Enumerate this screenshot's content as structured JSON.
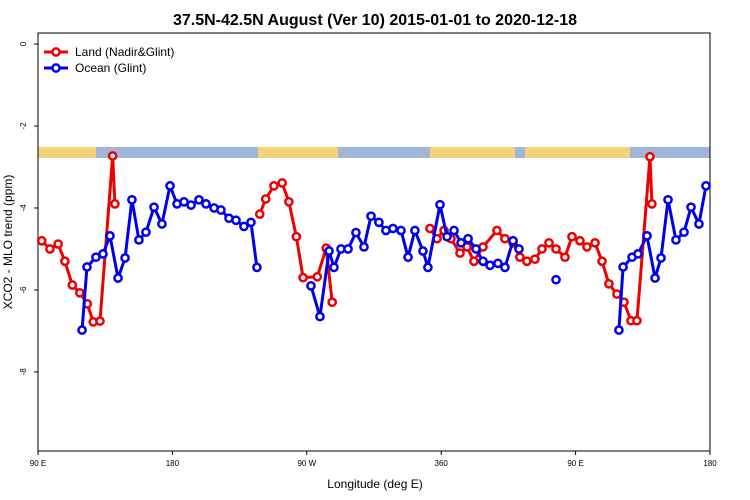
{
  "chart_data": {
    "type": "line",
    "title": "37.5N-42.5N August (Ver 10)   2015-01-01 to 2020-12-18",
    "x_label": "Longitude (deg E)",
    "y_label": "XCO2 - MLO trend (ppm)",
    "xlim": [
      90,
      540
    ],
    "ylim": [
      -9.93,
      0.27
    ],
    "xticks": [
      {
        "value": 90,
        "label": "90 E"
      },
      180,
      {
        "value": 270,
        "label": "90 W"
      },
      360,
      {
        "value": 450,
        "label": "90 E"
      },
      {
        "value": 540,
        "label": "180"
      }
    ],
    "yticks": [
      0,
      -2,
      -4,
      -6,
      -8
    ],
    "legend": "top-left",
    "series": [
      {
        "name": "Land (Nadir&Glint)",
        "color": "#ee0000",
        "x": [
          92.5,
          98,
          103.5,
          108,
          113,
          118,
          123,
          127,
          131.5,
          140,
          141.5,
          190,
          238.5,
          242.5,
          248,
          253.5,
          258,
          263,
          267.5,
          277,
          283,
          287,
          320,
          352.5,
          357.2,
          361.9,
          366.5,
          372.6,
          377.3,
          381.9,
          388,
          397.3,
          402.7,
          408.1,
          412.7,
          417.4,
          422.8,
          427.5,
          432.2,
          436.9,
          442.9,
          447.6,
          452.9,
          457.6,
          463,
          467.7,
          472.3,
          477.7,
          482.4,
          487.1,
          491.1,
          499.8,
          501.1
        ],
        "values": [
          -4.8,
          -5.0,
          -4.88,
          -5.3,
          -5.88,
          -6.07,
          -6.34,
          -6.78,
          -6.76,
          -2.73,
          -3.9,
          null,
          -4.15,
          -3.78,
          -3.46,
          -3.39,
          -3.85,
          -4.7,
          -5.7,
          -5.68,
          -4.98,
          -6.3,
          null,
          -4.5,
          -4.75,
          -4.55,
          -4.75,
          -5.1,
          -4.95,
          -5.3,
          -4.95,
          -4.55,
          -4.75,
          -4.85,
          -5.2,
          -5.3,
          -5.25,
          -5.0,
          -4.85,
          -5.0,
          -5.2,
          -4.7,
          -4.8,
          -4.95,
          -4.85,
          -5.3,
          -5.85,
          -6.1,
          -6.3,
          -6.75,
          -6.75,
          -2.75,
          -3.9
        ]
      },
      {
        "name": "Ocean (Glint)",
        "color": "#0000ee",
        "x": [
          119.5,
          122.8,
          128.8,
          133.5,
          138.2,
          143.6,
          148.3,
          152.9,
          157.6,
          162.3,
          167.7,
          173,
          178.4,
          183.1,
          187.8,
          192.5,
          197.8,
          202.5,
          207.9,
          212.5,
          217.9,
          222.6,
          227.9,
          232.6,
          236.6,
          255,
          272.8,
          278.8,
          284.9,
          288.2,
          292.9,
          297.6,
          302.9,
          308.3,
          313,
          318.3,
          323,
          327.7,
          333.1,
          337.8,
          342.4,
          347.8,
          351.1,
          359.2,
          363.9,
          368.6,
          373.3,
          378,
          383.3,
          388,
          392.7,
          398,
          402.7,
          408.1,
          412.1,
          425,
          436.9,
          460,
          479,
          481.8,
          487.8,
          491.8,
          497.8,
          503.2,
          507.2,
          511.9,
          517.2,
          522.6,
          527.3,
          532.6,
          537.3
        ],
        "values": [
          -6.98,
          -5.44,
          -5.2,
          -5.12,
          -4.68,
          -5.71,
          -5.22,
          -3.8,
          -4.78,
          -4.59,
          -3.98,
          -4.39,
          -3.46,
          -3.9,
          -3.85,
          -3.93,
          -3.8,
          -3.9,
          -4.0,
          -4.05,
          -4.25,
          -4.3,
          -4.45,
          -4.35,
          -5.45,
          null,
          -5.9,
          -6.65,
          -5.05,
          -5.45,
          -5.0,
          -5.0,
          -4.6,
          -4.95,
          -4.2,
          -4.35,
          -4.55,
          -4.5,
          -4.55,
          -5.2,
          -4.55,
          -5.05,
          -5.45,
          -3.92,
          -4.7,
          -4.55,
          -4.85,
          -4.75,
          -5.0,
          -5.3,
          -5.4,
          -5.35,
          -5.45,
          -4.8,
          -5.0,
          null,
          -5.75,
          null,
          -6.98,
          -5.44,
          -5.2,
          -5.12,
          -4.68,
          -5.71,
          -5.22,
          -3.8,
          -4.78,
          -4.59,
          -3.98,
          -4.39,
          -3.46
        ]
      }
    ]
  }
}
